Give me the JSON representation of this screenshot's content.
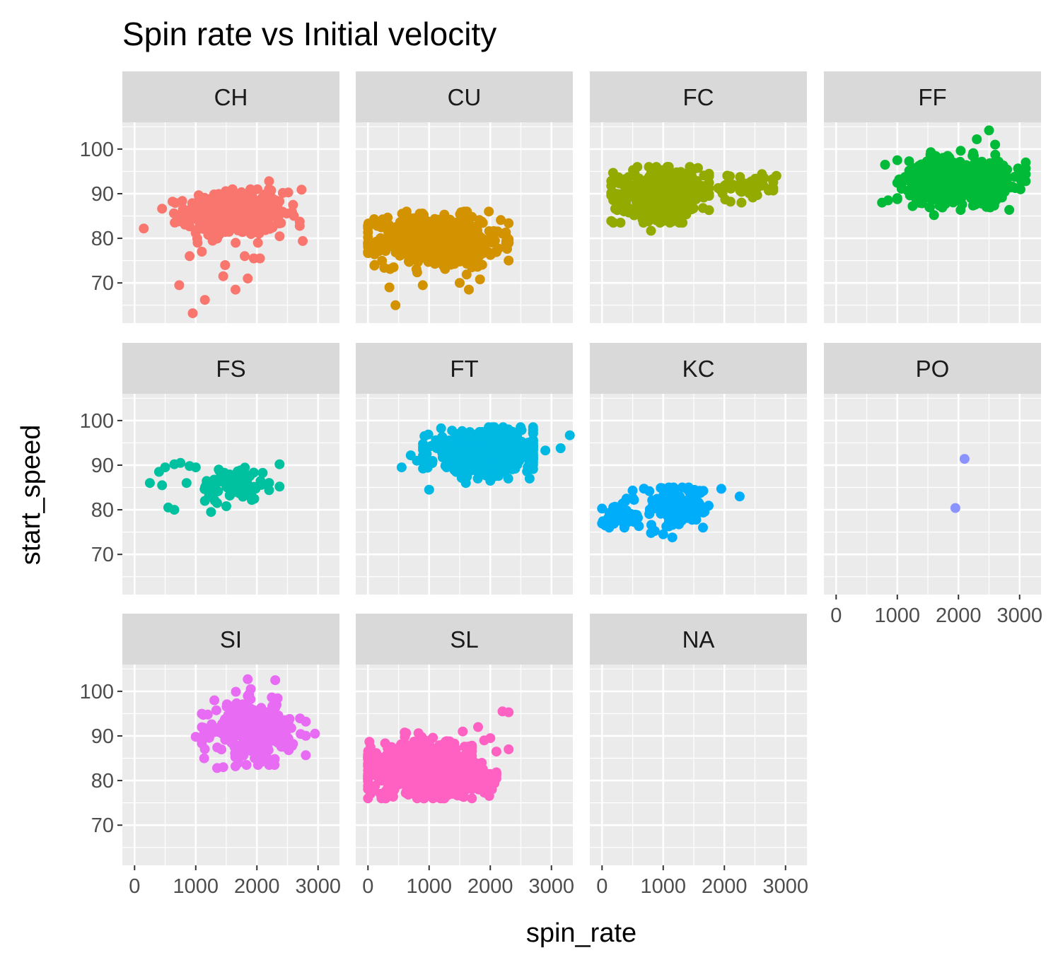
{
  "chart_data": {
    "type": "scatter",
    "title": "Spin rate vs Initial velocity",
    "xlabel": "spin_rate",
    "ylabel": "start_speed",
    "xlim": [
      -200,
      3350
    ],
    "ylim": [
      61,
      106
    ],
    "x_ticks": [
      0,
      1000,
      2000,
      3000
    ],
    "x_tick_labels": [
      "0",
      "1000",
      "2000",
      "3000"
    ],
    "y_ticks": [
      70,
      80,
      90,
      100
    ],
    "y_tick_labels": [
      "70",
      "80",
      "90",
      "100"
    ],
    "grid": true,
    "legend": "none",
    "facets": [
      {
        "label": "CH",
        "color": "#F8766D",
        "clusters": [
          {
            "cx": 1650,
            "cy": 85.5,
            "sx": 400,
            "sy": 2.4,
            "n": 520,
            "xmin": 450,
            "xmax": 2700,
            "ymin": 79,
            "ymax": 91
          }
        ],
        "points": [
          [
            150,
            82.2
          ],
          [
            730,
            69.5
          ],
          [
            1150,
            66.2
          ],
          [
            950,
            63.2
          ],
          [
            1450,
            71.5
          ],
          [
            1650,
            68.5
          ],
          [
            1850,
            71
          ],
          [
            1950,
            75.5
          ],
          [
            1480,
            74
          ],
          [
            1800,
            76
          ],
          [
            2050,
            75.5
          ],
          [
            2750,
            79.4
          ],
          [
            2730,
            90.9
          ],
          [
            2200,
            92.8
          ],
          [
            1100,
            77
          ],
          [
            900,
            76
          ]
        ]
      },
      {
        "label": "CU",
        "color": "#D39200",
        "clusters": [
          {
            "cx": 1150,
            "cy": 79.5,
            "sx": 500,
            "sy": 2.9,
            "n": 560,
            "xmin": 0,
            "xmax": 2300,
            "ymin": 69.5,
            "ymax": 86
          }
        ],
        "points": [
          [
            350,
            69
          ],
          [
            450,
            65
          ],
          [
            1650,
            68.5
          ],
          [
            1700,
            73.5
          ],
          [
            2300,
            75
          ],
          [
            1600,
            85.5
          ],
          [
            1700,
            84.8
          ],
          [
            420,
            73.5
          ],
          [
            1500,
            70
          ]
        ]
      },
      {
        "label": "FC",
        "color": "#93AA00",
        "clusters": [
          {
            "cx": 1000,
            "cy": 90,
            "sx": 400,
            "sy": 2.9,
            "n": 320,
            "xmin": 150,
            "xmax": 1750,
            "ymin": 83.5,
            "ymax": 96
          },
          {
            "cx": 2400,
            "cy": 91.5,
            "sx": 280,
            "sy": 1.6,
            "n": 50,
            "xmin": 1900,
            "xmax": 2800,
            "ymin": 88,
            "ymax": 94.5
          }
        ],
        "points": [
          [
            800,
            81.7
          ],
          [
            2850,
            94
          ],
          [
            2650,
            93.5
          ],
          [
            2750,
            91
          ],
          [
            2100,
            88.2
          ],
          [
            1500,
            95.5
          ]
        ]
      },
      {
        "label": "FF",
        "color": "#00BA38",
        "clusters": [
          {
            "cx": 2000,
            "cy": 93,
            "sx": 400,
            "sy": 2.3,
            "n": 750,
            "xmin": 1000,
            "xmax": 3100,
            "ymin": 86,
            "ymax": 100
          }
        ],
        "points": [
          [
            750,
            88
          ],
          [
            850,
            88.5
          ],
          [
            800,
            96.5
          ],
          [
            2300,
            102.2
          ],
          [
            2500,
            104.2
          ],
          [
            1600,
            85.2
          ],
          [
            3100,
            97
          ],
          [
            1250,
            87.2
          ],
          [
            2600,
            101
          ],
          [
            1000,
            97.5
          ]
        ]
      },
      {
        "label": "FS",
        "color": "#00C19F",
        "clusters": [
          {
            "cx": 1650,
            "cy": 86,
            "sx": 280,
            "sy": 1.9,
            "n": 85,
            "xmin": 1100,
            "xmax": 2200,
            "ymin": 81.5,
            "ymax": 90
          }
        ],
        "points": [
          [
            250,
            86
          ],
          [
            400,
            88.5
          ],
          [
            500,
            89.5
          ],
          [
            650,
            90.2
          ],
          [
            750,
            90.5
          ],
          [
            900,
            89.8
          ],
          [
            1000,
            89.5
          ],
          [
            450,
            85.5
          ],
          [
            550,
            80.5
          ],
          [
            650,
            80
          ],
          [
            850,
            86
          ],
          [
            1250,
            79.5
          ],
          [
            1500,
            80.8
          ],
          [
            1150,
            82
          ],
          [
            2370,
            90.2
          ],
          [
            2370,
            85.2
          ],
          [
            1350,
            81.5
          ]
        ]
      },
      {
        "label": "FT",
        "color": "#00B9E3",
        "clusters": [
          {
            "cx": 1900,
            "cy": 93,
            "sx": 450,
            "sy": 2.2,
            "n": 620,
            "xmin": 900,
            "xmax": 2700,
            "ymin": 87,
            "ymax": 98.5
          }
        ],
        "points": [
          [
            1000,
            84.5
          ],
          [
            700,
            92.2
          ],
          [
            550,
            89.5
          ],
          [
            3300,
            96.7
          ],
          [
            3150,
            93.8
          ],
          [
            2900,
            93.3
          ],
          [
            1600,
            86
          ],
          [
            2000,
            86.5
          ],
          [
            800,
            91
          ]
        ]
      },
      {
        "label": "KC",
        "color": "#00ADFA",
        "clusters": [
          {
            "cx": 1200,
            "cy": 80.5,
            "sx": 300,
            "sy": 2.3,
            "n": 110,
            "xmin": 500,
            "xmax": 1750,
            "ymin": 74,
            "ymax": 85
          },
          {
            "cx": 300,
            "cy": 78.5,
            "sx": 180,
            "sy": 1.6,
            "n": 35,
            "xmin": 0,
            "xmax": 650,
            "ymin": 76,
            "ymax": 82.5
          }
        ],
        "points": [
          [
            50,
            76.5
          ],
          [
            800,
            74.8
          ],
          [
            1000,
            74.5
          ],
          [
            1150,
            73.8
          ],
          [
            1650,
            76
          ],
          [
            1950,
            84.7
          ],
          [
            2250,
            83
          ],
          [
            1400,
            84.5
          ],
          [
            400,
            82.5
          ]
        ]
      },
      {
        "label": "PO",
        "color": "#8B93FF",
        "clusters": [],
        "points": [
          [
            1950,
            80.4
          ],
          [
            2100,
            91.4
          ]
        ]
      },
      {
        "label": "SI",
        "color": "#E76BF3",
        "clusters": [
          {
            "cx": 1950,
            "cy": 91.5,
            "sx": 330,
            "sy": 2.8,
            "n": 330,
            "xmin": 1100,
            "xmax": 2800,
            "ymin": 83.5,
            "ymax": 101
          }
        ],
        "points": [
          [
            1000,
            89.8
          ],
          [
            1350,
            82.8
          ],
          [
            1450,
            83
          ],
          [
            1650,
            83.2
          ],
          [
            1700,
            84
          ],
          [
            2200,
            83.5
          ],
          [
            1850,
            102.7
          ],
          [
            2300,
            102.5
          ],
          [
            2950,
            90.5
          ],
          [
            2800,
            93.2
          ],
          [
            1900,
            100.5
          ]
        ]
      },
      {
        "label": "SL",
        "color": "#FF61C3",
        "clusters": [
          {
            "cx": 900,
            "cy": 82.5,
            "sx": 480,
            "sy": 3.0,
            "n": 650,
            "xmin": 0,
            "xmax": 1700,
            "ymin": 76,
            "ymax": 92.5
          },
          {
            "cx": 1800,
            "cy": 80.5,
            "sx": 200,
            "sy": 2.0,
            "n": 80,
            "xmin": 1450,
            "xmax": 2100,
            "ymin": 76.5,
            "ymax": 86
          }
        ],
        "points": [
          [
            2200,
            95.5
          ],
          [
            2300,
            95.3
          ],
          [
            2300,
            87
          ],
          [
            1800,
            92
          ],
          [
            1900,
            89
          ],
          [
            2000,
            89.5
          ],
          [
            2100,
            86.5
          ],
          [
            1550,
            91
          ],
          [
            1700,
            76
          ]
        ]
      },
      {
        "label": "NA",
        "color": "#F8766D",
        "clusters": [],
        "points": []
      }
    ]
  }
}
